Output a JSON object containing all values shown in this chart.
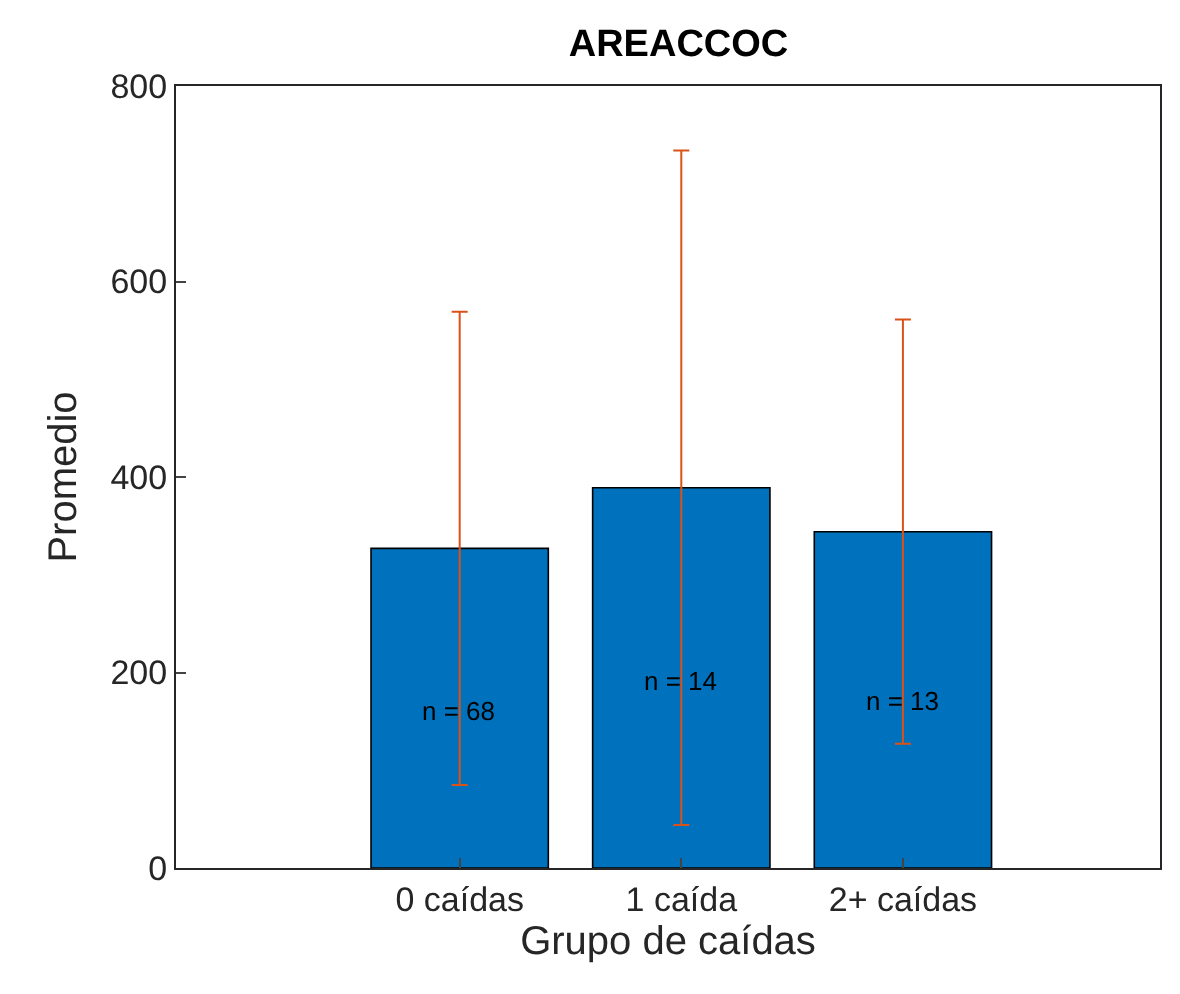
{
  "chart_data": {
    "type": "bar",
    "title": "AREACCOC",
    "xlabel": "Grupo de caídas",
    "ylabel": "Promedio",
    "categories": [
      "0 caídas",
      "1 caída",
      "2+ caídas"
    ],
    "values": [
      327,
      389,
      344
    ],
    "errors": [
      242,
      345,
      217
    ],
    "color": "#0072bd",
    "ylim": [
      0,
      800
    ],
    "yticks": [
      0,
      200,
      400,
      600,
      800
    ],
    "grid": false,
    "legend": false,
    "annotations": [
      {
        "text": "n = 68",
        "x": "0 caídas",
        "y": 161
      },
      {
        "text": "n = 14",
        "x": "1 caída",
        "y": 192
      },
      {
        "text": "n = 13",
        "x": "2+ caídas",
        "y": 170
      }
    ]
  }
}
